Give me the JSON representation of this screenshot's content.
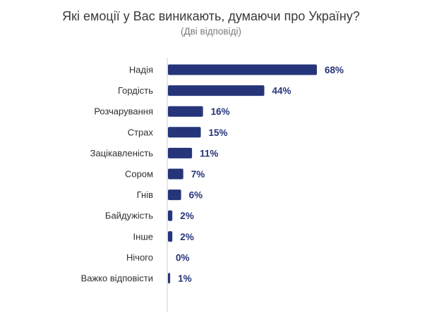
{
  "title": "Які емоції у Вас виникають, думаючи про Україну?",
  "subtitle": "(Дві відповіді)",
  "colors": {
    "bar": "#26357a",
    "axis": "#cfcfcf"
  },
  "chart_data": {
    "type": "bar",
    "orientation": "horizontal",
    "title": "Які емоції у Вас виникають, думаючи про Україну?",
    "subtitle": "(Дві відповіді)",
    "categories": [
      "Надія",
      "Гордість",
      "Розчарування",
      "Страх",
      "Зацікавленість",
      "Сором",
      "Гнів",
      "Байдужість",
      "Інше",
      "Нічого",
      "Важко відповісти"
    ],
    "values": [
      68,
      44,
      16,
      15,
      11,
      7,
      6,
      2,
      2,
      0,
      1
    ],
    "value_labels": [
      "68%",
      "44%",
      "16%",
      "15%",
      "11%",
      "7%",
      "6%",
      "2%",
      "2%",
      "0%",
      "1%"
    ],
    "unit": "%",
    "grid": false
  }
}
